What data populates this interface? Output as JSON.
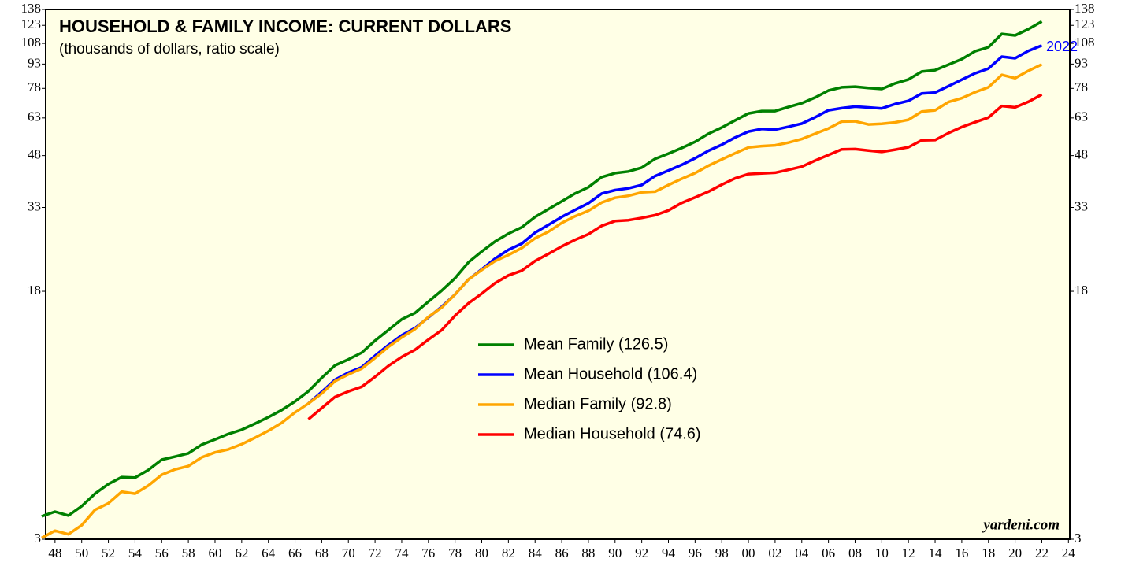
{
  "chart_data": {
    "type": "line",
    "title": "HOUSEHOLD & FAMILY INCOME: CURRENT DOLLARS",
    "subtitle": "(thousands of dollars, ratio scale)",
    "annotation": "2022",
    "source": "yardeni.com",
    "log_scale": true,
    "x": [
      1947,
      1948,
      1949,
      1950,
      1951,
      1952,
      1953,
      1954,
      1955,
      1956,
      1957,
      1958,
      1959,
      1960,
      1961,
      1962,
      1963,
      1964,
      1965,
      1966,
      1967,
      1968,
      1969,
      1970,
      1971,
      1972,
      1973,
      1974,
      1975,
      1976,
      1977,
      1978,
      1979,
      1980,
      1981,
      1982,
      1983,
      1984,
      1985,
      1986,
      1987,
      1988,
      1989,
      1990,
      1991,
      1992,
      1993,
      1994,
      1995,
      1996,
      1997,
      1998,
      1999,
      2000,
      2001,
      2002,
      2003,
      2004,
      2005,
      2006,
      2007,
      2008,
      2009,
      2010,
      2011,
      2012,
      2013,
      2014,
      2015,
      2016,
      2017,
      2018,
      2019,
      2020,
      2021,
      2022
    ],
    "series": [
      {
        "name": "Mean Family (126.5)",
        "color": "#008000",
        "values": [
          3.54,
          3.66,
          3.56,
          3.81,
          4.17,
          4.47,
          4.7,
          4.68,
          4.95,
          5.33,
          5.45,
          5.58,
          5.94,
          6.17,
          6.42,
          6.62,
          6.92,
          7.25,
          7.63,
          8.12,
          8.74,
          9.63,
          10.54,
          11.0,
          11.55,
          12.6,
          13.6,
          14.7,
          15.4,
          16.7,
          18.1,
          19.8,
          22.2,
          24.0,
          25.8,
          27.3,
          28.6,
          30.8,
          32.6,
          34.5,
          36.5,
          38.2,
          41.1,
          42.3,
          42.8,
          44.0,
          46.9,
          48.7,
          50.7,
          53.0,
          56.2,
          58.8,
          61.9,
          65.1,
          66.2,
          66.2,
          68.2,
          70.1,
          73.0,
          76.8,
          78.6,
          79.0,
          78.2,
          77.7,
          80.9,
          83.2,
          88.1,
          89.0,
          92.6,
          96.4,
          102.0,
          105.0,
          115.6,
          114.4,
          119.7,
          126.5
        ]
      },
      {
        "name": "Mean Household (106.4)",
        "color": "#0000ff",
        "values": [
          null,
          null,
          null,
          null,
          null,
          null,
          null,
          null,
          null,
          null,
          null,
          null,
          null,
          null,
          null,
          null,
          null,
          null,
          null,
          null,
          8.0,
          8.7,
          9.5,
          10.0,
          10.4,
          11.3,
          12.2,
          13.1,
          13.8,
          14.9,
          16.1,
          17.6,
          19.6,
          21.1,
          22.8,
          24.3,
          25.4,
          27.5,
          29.1,
          30.8,
          32.4,
          34.0,
          36.5,
          37.4,
          37.9,
          38.8,
          41.4,
          43.1,
          44.9,
          47.1,
          49.7,
          51.9,
          54.7,
          57.1,
          58.2,
          57.9,
          59.1,
          60.5,
          63.3,
          66.6,
          67.6,
          68.4,
          67.98,
          67.5,
          69.7,
          71.3,
          75.2,
          75.7,
          79.3,
          83.1,
          87.0,
          90.0,
          98.1,
          97.0,
          102.3,
          106.4
        ]
      },
      {
        "name": "Median Family (92.8)",
        "color": "#ffa500",
        "values": [
          3.03,
          3.19,
          3.11,
          3.32,
          3.71,
          3.89,
          4.23,
          4.17,
          4.42,
          4.78,
          4.97,
          5.09,
          5.42,
          5.62,
          5.74,
          5.96,
          6.25,
          6.57,
          6.96,
          7.5,
          8.0,
          8.6,
          9.4,
          9.87,
          10.29,
          11.12,
          12.05,
          12.9,
          13.7,
          14.96,
          16.0,
          17.6,
          19.6,
          21.0,
          22.4,
          23.4,
          24.6,
          26.4,
          27.7,
          29.5,
          30.97,
          32.2,
          34.2,
          35.4,
          35.9,
          36.8,
          37.0,
          38.8,
          40.6,
          42.3,
          44.6,
          46.7,
          48.8,
          50.9,
          51.4,
          51.7,
          52.7,
          54.1,
          56.2,
          58.4,
          61.4,
          61.5,
          60.1,
          60.4,
          61.0,
          62.2,
          66.0,
          66.6,
          70.7,
          72.7,
          75.9,
          78.6,
          86.0,
          84.0,
          88.6,
          92.8
        ]
      },
      {
        "name": "Median Household (74.6)",
        "color": "#ff0000",
        "values": [
          null,
          null,
          null,
          null,
          null,
          null,
          null,
          null,
          null,
          null,
          null,
          null,
          null,
          null,
          null,
          null,
          null,
          null,
          null,
          null,
          7.14,
          7.74,
          8.39,
          8.73,
          9.03,
          9.7,
          10.5,
          11.2,
          11.8,
          12.7,
          13.6,
          15.1,
          16.5,
          17.7,
          19.1,
          20.2,
          20.9,
          22.4,
          23.6,
          24.9,
          26.1,
          27.2,
          28.9,
          29.9,
          30.1,
          30.6,
          31.2,
          32.3,
          34.1,
          35.5,
          37.0,
          38.9,
          40.7,
          41.99,
          42.2,
          42.4,
          43.3,
          44.3,
          46.3,
          48.2,
          50.2,
          50.3,
          49.8,
          49.3,
          50.1,
          51.0,
          53.6,
          53.7,
          56.5,
          59.0,
          61.1,
          63.2,
          68.7,
          68.0,
          70.8,
          74.6
        ]
      }
    ],
    "xlim": [
      1947.3,
      2024.1
    ],
    "xticks": [
      {
        "value": 1948,
        "label": "48"
      },
      {
        "value": 1950,
        "label": "50"
      },
      {
        "value": 1952,
        "label": "52"
      },
      {
        "value": 1954,
        "label": "54"
      },
      {
        "value": 1956,
        "label": "56"
      },
      {
        "value": 1958,
        "label": "58"
      },
      {
        "value": 1960,
        "label": "60"
      },
      {
        "value": 1962,
        "label": "62"
      },
      {
        "value": 1964,
        "label": "64"
      },
      {
        "value": 1966,
        "label": "66"
      },
      {
        "value": 1968,
        "label": "68"
      },
      {
        "value": 1970,
        "label": "70"
      },
      {
        "value": 1972,
        "label": "72"
      },
      {
        "value": 1974,
        "label": "74"
      },
      {
        "value": 1976,
        "label": "76"
      },
      {
        "value": 1978,
        "label": "78"
      },
      {
        "value": 1980,
        "label": "80"
      },
      {
        "value": 1982,
        "label": "82"
      },
      {
        "value": 1984,
        "label": "84"
      },
      {
        "value": 1986,
        "label": "86"
      },
      {
        "value": 1988,
        "label": "88"
      },
      {
        "value": 1990,
        "label": "90"
      },
      {
        "value": 1992,
        "label": "92"
      },
      {
        "value": 1994,
        "label": "94"
      },
      {
        "value": 1996,
        "label": "96"
      },
      {
        "value": 1998,
        "label": "98"
      },
      {
        "value": 2000,
        "label": "00"
      },
      {
        "value": 2002,
        "label": "02"
      },
      {
        "value": 2004,
        "label": "04"
      },
      {
        "value": 2006,
        "label": "06"
      },
      {
        "value": 2008,
        "label": "08"
      },
      {
        "value": 2010,
        "label": "10"
      },
      {
        "value": 2012,
        "label": "12"
      },
      {
        "value": 2014,
        "label": "14"
      },
      {
        "value": 2016,
        "label": "16"
      },
      {
        "value": 2018,
        "label": "18"
      },
      {
        "value": 2020,
        "label": "20"
      },
      {
        "value": 2022,
        "label": "22"
      },
      {
        "value": 2024,
        "label": "24"
      }
    ],
    "ylim": [
      3,
      138
    ],
    "yticks": [
      3,
      18,
      33,
      48,
      63,
      78,
      93,
      108,
      123,
      138
    ],
    "grid": false,
    "legend": "center"
  }
}
